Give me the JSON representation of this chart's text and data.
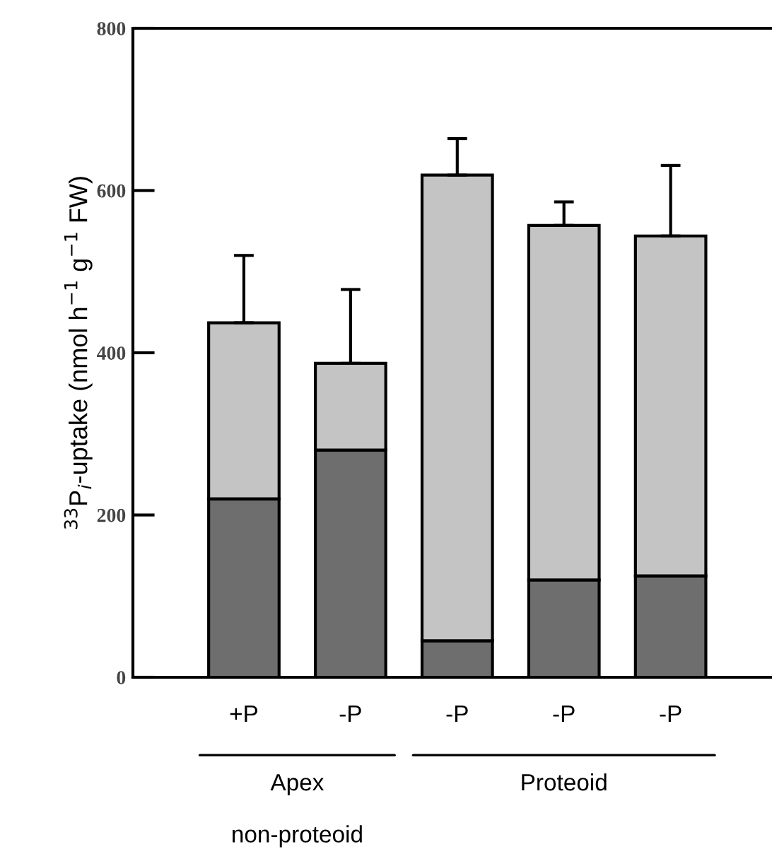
{
  "chart_data": {
    "type": "bar",
    "stacked": true,
    "ylabel": "$^{33}$P$_{i}$-uptake (nmol h$^{−1}$ g$^{−1}$ FW)",
    "categories": [
      "+P",
      "-P",
      "-P",
      "-P",
      "-P"
    ],
    "series": [
      {
        "color": "#6e6e6e",
        "values": [
          220,
          280,
          45,
          120,
          125
        ]
      },
      {
        "color": "#c4c4c4",
        "values": [
          217,
          107,
          574,
          437,
          419
        ],
        "errors": [
          [
            437,
            520
          ],
          [
            387,
            478
          ],
          [
            619,
            664
          ],
          [
            557,
            586
          ],
          [
            544,
            631
          ]
        ]
      }
    ],
    "annotations": [
      "Apex",
      "Proteoid",
      "non-proteoid"
    ],
    "ylim": [
      0,
      800
    ],
    "yticks": [
      0,
      200,
      400,
      600,
      800
    ],
    "grid": false,
    "legend": false
  }
}
